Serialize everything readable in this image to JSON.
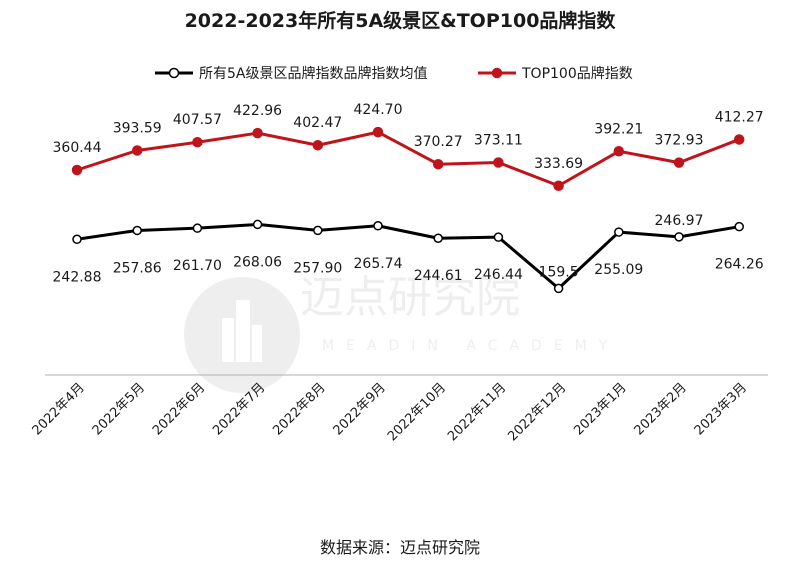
{
  "title": "2022-2023年所有5A级景区&TOP100品牌指数",
  "source": "数据来源：迈点研究院",
  "watermark": {
    "cn": "迈点研究院",
    "en": "MEADIN ACADEMY"
  },
  "chart_data": {
    "type": "line",
    "title": "2022-2023年所有5A级景区&TOP100品牌指数",
    "categories": [
      "2022年4月",
      "2022年5月",
      "2022年6月",
      "2022年7月",
      "2022年8月",
      "2022年9月",
      "2022年10月",
      "2022年11月",
      "2022年12月",
      "2023年1月",
      "2023年2月",
      "2023年3月"
    ],
    "series": [
      {
        "name": "所有5A级景区品牌指数品牌指数均值",
        "color": "#000000",
        "marker": "hollow-circle",
        "values": [
          242.88,
          257.86,
          261.7,
          268.06,
          257.9,
          265.74,
          244.61,
          246.44,
          159.5,
          255.09,
          246.97,
          264.26
        ],
        "labels": [
          "242.88",
          "257.86",
          "261.70",
          "268.06",
          "257.90",
          "265.74",
          "244.61",
          "246.44",
          "159.5",
          "255.09",
          "246.97",
          "264.26"
        ]
      },
      {
        "name": "TOP100品牌指数",
        "color": "#c0141c",
        "marker": "filled-circle",
        "values": [
          360.44,
          393.59,
          407.57,
          422.96,
          402.47,
          424.7,
          370.27,
          373.11,
          333.69,
          392.21,
          372.93,
          412.27
        ],
        "labels": [
          "360.44",
          "393.59",
          "407.57",
          "422.96",
          "402.47",
          "424.70",
          "370.27",
          "373.11",
          "333.69",
          "392.21",
          "372.93",
          "412.27"
        ]
      }
    ],
    "legend_position": "top",
    "grid": false,
    "xlabel": "",
    "ylabel": ""
  }
}
